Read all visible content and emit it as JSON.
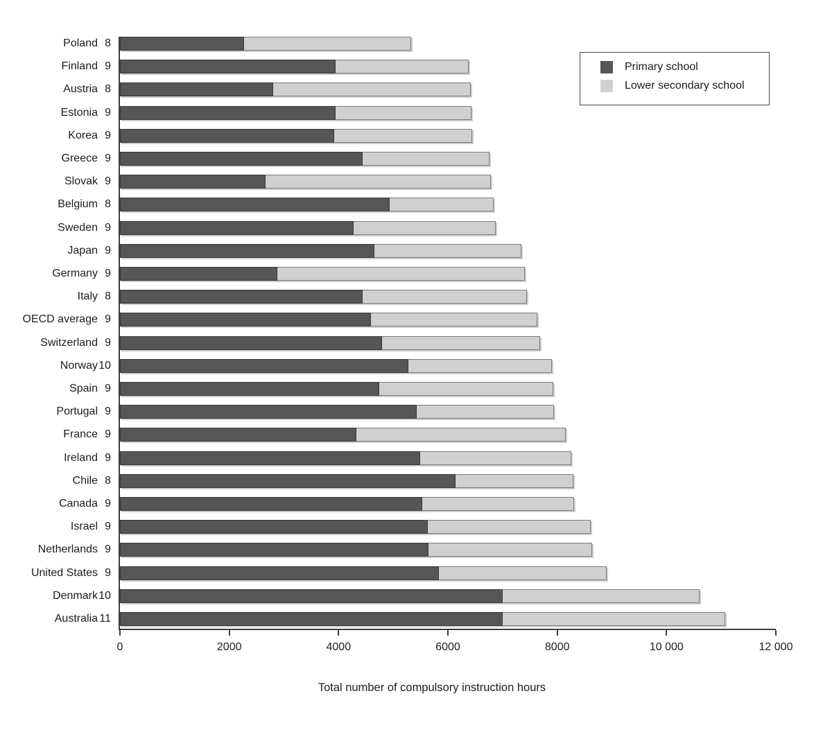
{
  "chart_data": {
    "type": "bar",
    "orientation": "horizontal",
    "stacked": true,
    "title": "",
    "xlabel": "Total number of compulsory instruction hours",
    "ylabel": "",
    "xlim": [
      0,
      12000
    ],
    "grid": false,
    "x_ticks": [
      0,
      2000,
      4000,
      6000,
      8000,
      10000,
      12000
    ],
    "x_tick_labels": [
      "0",
      "2000",
      "4000",
      "6000",
      "8000",
      "10 000",
      "12 000"
    ],
    "legend_position": "top-right",
    "categories": [
      {
        "country": "Poland",
        "years": "8"
      },
      {
        "country": "Finland",
        "years": "9"
      },
      {
        "country": "Austria",
        "years": "8"
      },
      {
        "country": "Estonia",
        "years": "9"
      },
      {
        "country": "Korea",
        "years": "9"
      },
      {
        "country": "Greece",
        "years": "9"
      },
      {
        "country": "Slovak",
        "years": "9"
      },
      {
        "country": "Belgium",
        "years": "8"
      },
      {
        "country": "Sweden",
        "years": "9"
      },
      {
        "country": "Japan",
        "years": "9"
      },
      {
        "country": "Germany",
        "years": "9"
      },
      {
        "country": "Italy",
        "years": "8"
      },
      {
        "country": "OECD average",
        "years": "9"
      },
      {
        "country": "Switzerland",
        "years": "9"
      },
      {
        "country": "Norway",
        "years": "10"
      },
      {
        "country": "Spain",
        "years": "9"
      },
      {
        "country": "Portugal",
        "years": "9"
      },
      {
        "country": "France",
        "years": "9"
      },
      {
        "country": "Ireland",
        "years": "9"
      },
      {
        "country": "Chile",
        "years": "8"
      },
      {
        "country": "Canada",
        "years": "9"
      },
      {
        "country": "Israel",
        "years": "9"
      },
      {
        "country": "Netherlands",
        "years": "9"
      },
      {
        "country": "United States",
        "years": "9"
      },
      {
        "country": "Denmark",
        "years": "10"
      },
      {
        "country": "Australia",
        "years": "11"
      }
    ],
    "series": [
      {
        "name": "Primary school",
        "color": "#565659",
        "values": [
          2270,
          3950,
          2800,
          3950,
          3920,
          4440,
          2670,
          4940,
          4280,
          4660,
          2880,
          4440,
          4590,
          4800,
          5280,
          4740,
          5430,
          4320,
          5490,
          6140,
          5530,
          5630,
          5650,
          5830,
          7000,
          7000
        ]
      },
      {
        "name": "Lower secondary school",
        "color": "#d0d0d2",
        "values": [
          3060,
          2430,
          3620,
          2480,
          2530,
          2320,
          4120,
          1900,
          2600,
          2680,
          4530,
          3000,
          3050,
          2890,
          2620,
          3190,
          2510,
          3840,
          2770,
          2150,
          2780,
          2980,
          2990,
          3080,
          3610,
          4070
        ]
      }
    ],
    "totals": [
      5330,
      6380,
      6420,
      6430,
      6450,
      6760,
      6790,
      6840,
      6880,
      7340,
      7410,
      7440,
      7640,
      7690,
      7900,
      7930,
      7940,
      8160,
      8260,
      8290,
      8310,
      8610,
      8640,
      8910,
      10610,
      11070
    ]
  },
  "axis_color": "#3d3d3d",
  "background_color": "#ffffff"
}
